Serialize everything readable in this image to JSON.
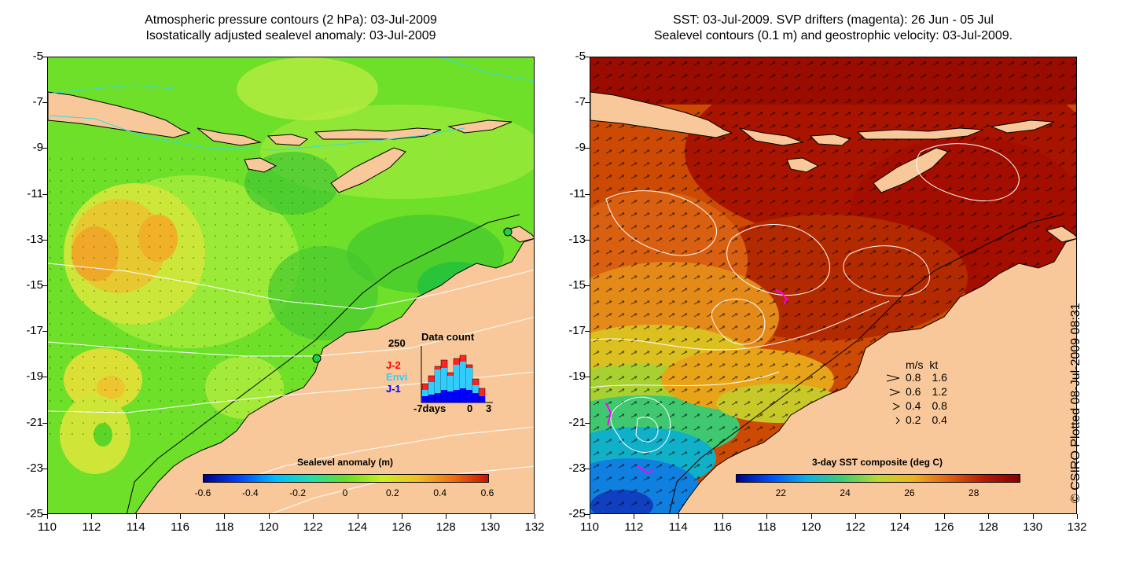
{
  "left_panel": {
    "title_line1": "Atmospheric pressure contours (2 hPa): 03-Jul-2009",
    "title_line2": "Isostatically adjusted sealevel anomaly: 03-Jul-2009",
    "colorbar": {
      "label": "Sealevel anomaly (m)",
      "ticks": [
        "-0.6",
        "-0.4",
        "-0.2",
        "0",
        "0.2",
        "0.4",
        "0.6"
      ],
      "range": [
        -0.6,
        0.6
      ]
    },
    "inset": {
      "title": "Data count",
      "max_label": "250",
      "x_labels": [
        "-7days",
        "0",
        "3"
      ],
      "missions": [
        {
          "name": "J-2",
          "color": "#ff0000"
        },
        {
          "name": "Envi",
          "color": "#33ccff"
        },
        {
          "name": "J-1",
          "color": "#0000ff"
        }
      ]
    }
  },
  "right_panel": {
    "title_line1": "SST: 03-Jul-2009. SVP drifters (magenta): 26 Jun - 05 Jul",
    "title_line2": "Sealevel contours (0.1 m) and geostrophic velocity: 03-Jul-2009.",
    "colorbar": {
      "label": "3-day SST composite (deg C)",
      "ticks": [
        "22",
        "24",
        "26",
        "28"
      ],
      "range": [
        20.6,
        29.4
      ]
    },
    "velocity_legend": {
      "header_ms": "m/s",
      "header_kt": "kt",
      "rows": [
        {
          "ms": "0.8",
          "kt": "1.6"
        },
        {
          "ms": "0.6",
          "kt": "1.2"
        },
        {
          "ms": "0.4",
          "kt": "0.8"
        },
        {
          "ms": "0.2",
          "kt": "0.4"
        }
      ]
    }
  },
  "axes": {
    "lon_ticks": [
      "110",
      "112",
      "114",
      "116",
      "118",
      "120",
      "122",
      "124",
      "126",
      "128",
      "130",
      "132"
    ],
    "lat_ticks": [
      "-5",
      "-7",
      "-9",
      "-11",
      "-13",
      "-15",
      "-17",
      "-19",
      "-21",
      "-23",
      "-25"
    ],
    "lon_range": [
      110,
      132
    ],
    "lat_range": [
      -25,
      -5
    ]
  },
  "credit": "© CSIRO Plotted 08-Jul-2009 08:31",
  "colors": {
    "land": "#f8c89a",
    "sla_background": "#66dd22",
    "sst_background": "#cc4400"
  }
}
